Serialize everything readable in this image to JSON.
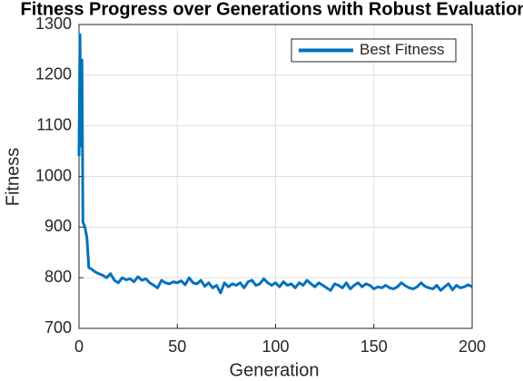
{
  "chart_data": {
    "type": "line",
    "title": "Fitness Progress over Generations with Robust Evaluation",
    "xlabel": "Generation",
    "ylabel": "Fitness",
    "x": [
      0,
      0.5,
      1,
      1.5,
      2,
      3,
      4,
      5,
      6,
      8,
      10,
      12,
      14,
      16,
      18,
      20,
      22,
      24,
      26,
      28,
      30,
      32,
      34,
      36,
      38,
      40,
      42,
      44,
      46,
      48,
      50,
      52,
      54,
      56,
      58,
      60,
      62,
      64,
      66,
      68,
      70,
      72,
      74,
      76,
      78,
      80,
      82,
      84,
      86,
      88,
      90,
      92,
      94,
      96,
      98,
      100,
      102,
      104,
      106,
      108,
      110,
      112,
      114,
      116,
      118,
      120,
      122,
      124,
      126,
      128,
      130,
      132,
      134,
      136,
      138,
      140,
      142,
      144,
      146,
      148,
      150,
      152,
      154,
      156,
      158,
      160,
      162,
      164,
      166,
      168,
      170,
      172,
      174,
      176,
      178,
      180,
      182,
      184,
      186,
      188,
      190,
      192,
      194,
      196,
      198,
      200
    ],
    "series": [
      {
        "name": "Best Fitness",
        "color": "#0072bd",
        "values": [
          1040,
          1280,
          1060,
          1230,
          910,
          900,
          880,
          820,
          818,
          812,
          808,
          805,
          800,
          808,
          795,
          790,
          800,
          796,
          798,
          792,
          802,
          795,
          798,
          790,
          785,
          780,
          795,
          790,
          788,
          792,
          790,
          794,
          786,
          800,
          790,
          788,
          795,
          783,
          790,
          780,
          785,
          770,
          790,
          782,
          788,
          785,
          790,
          780,
          792,
          795,
          785,
          788,
          798,
          790,
          785,
          790,
          782,
          792,
          785,
          788,
          780,
          790,
          785,
          795,
          788,
          782,
          790,
          785,
          780,
          775,
          788,
          785,
          780,
          790,
          778,
          785,
          790,
          782,
          788,
          785,
          778,
          782,
          780,
          785,
          780,
          778,
          782,
          790,
          784,
          780,
          778,
          782,
          790,
          783,
          780,
          778,
          785,
          775,
          782,
          788,
          776,
          785,
          780,
          782,
          786,
          782
        ]
      }
    ],
    "xlim": [
      0,
      200
    ],
    "xticks": [
      0,
      50,
      100,
      150,
      200
    ],
    "ylim": [
      700,
      1300
    ],
    "yticks": [
      700,
      800,
      900,
      1000,
      1100,
      1200,
      1300
    ],
    "grid": true,
    "legend": "northeast"
  }
}
